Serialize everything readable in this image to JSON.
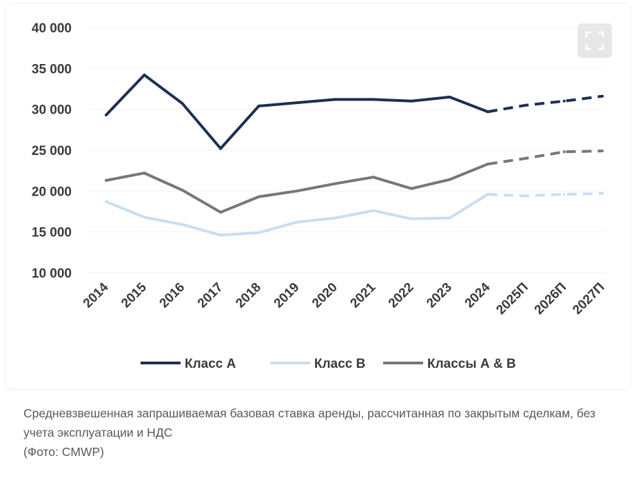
{
  "chart_data": {
    "type": "line",
    "categories": [
      "2014",
      "2015",
      "2016",
      "2017",
      "2018",
      "2019",
      "2020",
      "2021",
      "2022",
      "2023",
      "2024",
      "2025П",
      "2026П",
      "2027П"
    ],
    "forecast_from_index": 10,
    "yticks": [
      "40 000",
      "35 000",
      "30 000",
      "25 000",
      "20 000",
      "15 000",
      "10 000"
    ],
    "ylim": [
      10000,
      40000
    ],
    "grid": "horizontal",
    "legend_position": "bottom",
    "series": [
      {
        "name": "Класс А",
        "color": "#1c2f52",
        "values": [
          29300,
          34200,
          30700,
          25200,
          30400,
          30800,
          31200,
          31200,
          31000,
          31500,
          29700,
          30500,
          31000,
          31600
        ]
      },
      {
        "name": "Класс В",
        "color": "#c9def0",
        "values": [
          18700,
          16800,
          15900,
          14600,
          14900,
          16200,
          16700,
          17600,
          16600,
          16700,
          19600,
          19400,
          19600,
          19700
        ]
      },
      {
        "name": "Классы А & В",
        "color": "#777777",
        "values": [
          21300,
          22200,
          20100,
          17400,
          19300,
          20000,
          20900,
          21700,
          20300,
          21400,
          23300,
          24000,
          24800,
          24900
        ]
      }
    ]
  },
  "caption": {
    "text": "Средневзвешенная запрашиваемая базовая ставка аренды, рассчитанная по закрытым сделкам, без учета эксплуатации и НДС",
    "source": "(Фото: CMWP)"
  },
  "icons": {
    "expand": "expand-icon"
  }
}
